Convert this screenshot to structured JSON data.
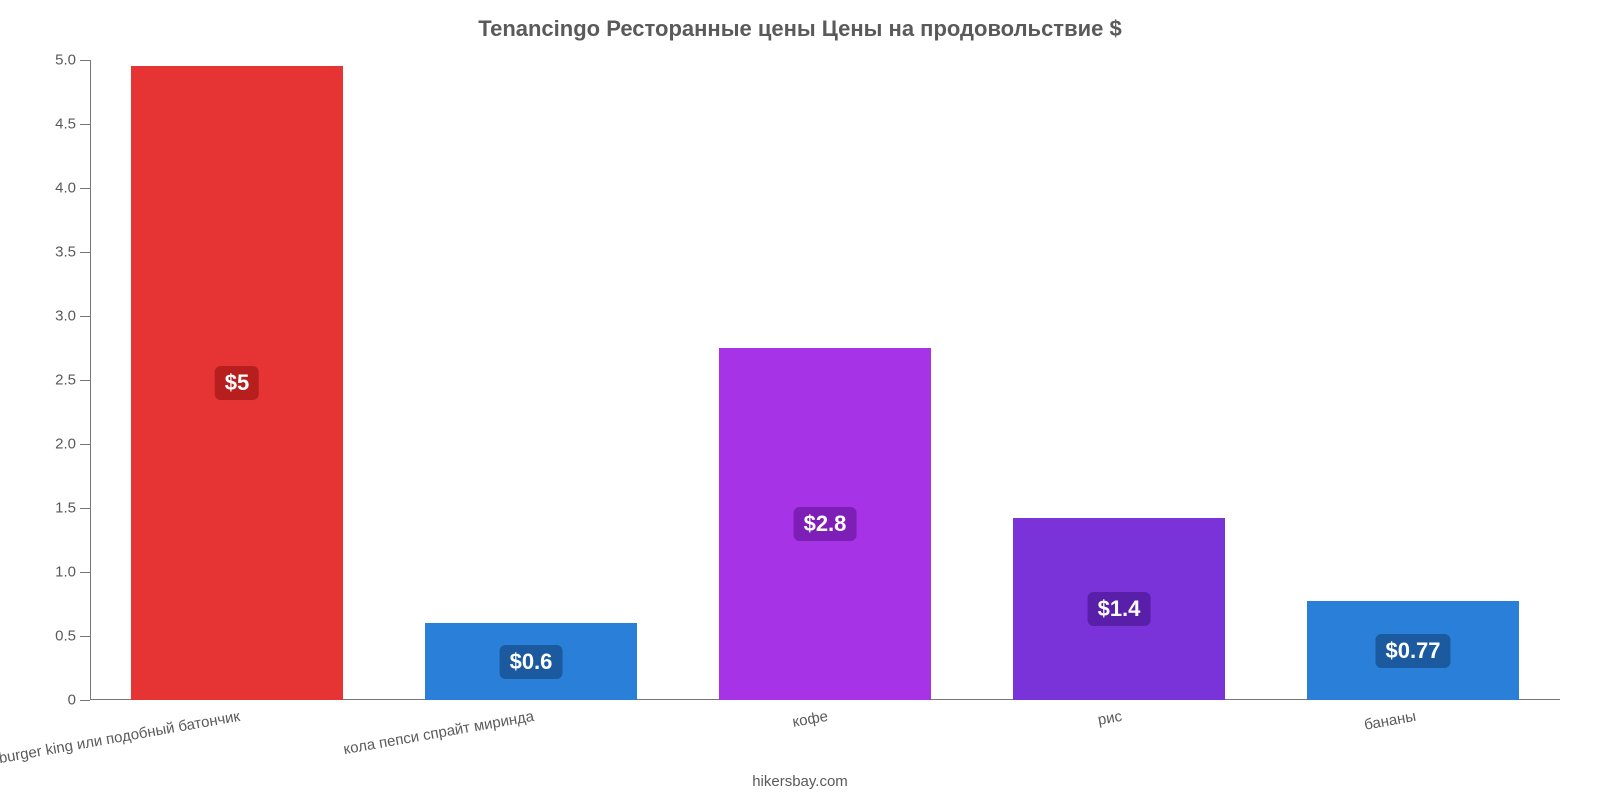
{
  "chart": {
    "type": "bar",
    "title": "Tenancingo Ресторанные цены Цены на продовольствие $",
    "title_fontsize": 22,
    "title_color": "#5a5a5a",
    "attribution": "hikersbay.com",
    "attribution_fontsize": 15,
    "background_color": "#ffffff",
    "axis_color": "#777777",
    "tick_label_color": "#5a5a5a",
    "tick_label_fontsize": 15,
    "xcat_label_fontsize": 15,
    "xcat_label_rotation_deg": -10,
    "ylim": [
      0,
      5.0
    ],
    "yticks": [
      0,
      0.5,
      1.0,
      1.5,
      2.0,
      2.5,
      3.0,
      3.5,
      4.0,
      4.5,
      5.0
    ],
    "ytick_labels": [
      "0",
      "0.5",
      "1.0",
      "1.5",
      "2.0",
      "2.5",
      "3.0",
      "3.5",
      "4.0",
      "4.5",
      "5.0"
    ],
    "bar_width_ratio": 0.72,
    "value_label_fontsize": 22,
    "value_label_text_color": "#ffffff",
    "categories": [
      "mac burger king или подобный батончик",
      "кола пепси спрайт миринда",
      "кофе",
      "рис",
      "бананы"
    ],
    "values": [
      4.95,
      0.6,
      2.75,
      1.42,
      0.77
    ],
    "value_labels": [
      "$5",
      "$0.6",
      "$2.8",
      "$1.4",
      "$0.77"
    ],
    "bar_colors": [
      "#e63333",
      "#2a80d8",
      "#a633e6",
      "#7a33d8",
      "#2a80d8"
    ],
    "value_label_bg_colors": [
      "#b71f1f",
      "#1b5a9e",
      "#7d1fb7",
      "#5a1fa8",
      "#1b5a9e"
    ]
  }
}
